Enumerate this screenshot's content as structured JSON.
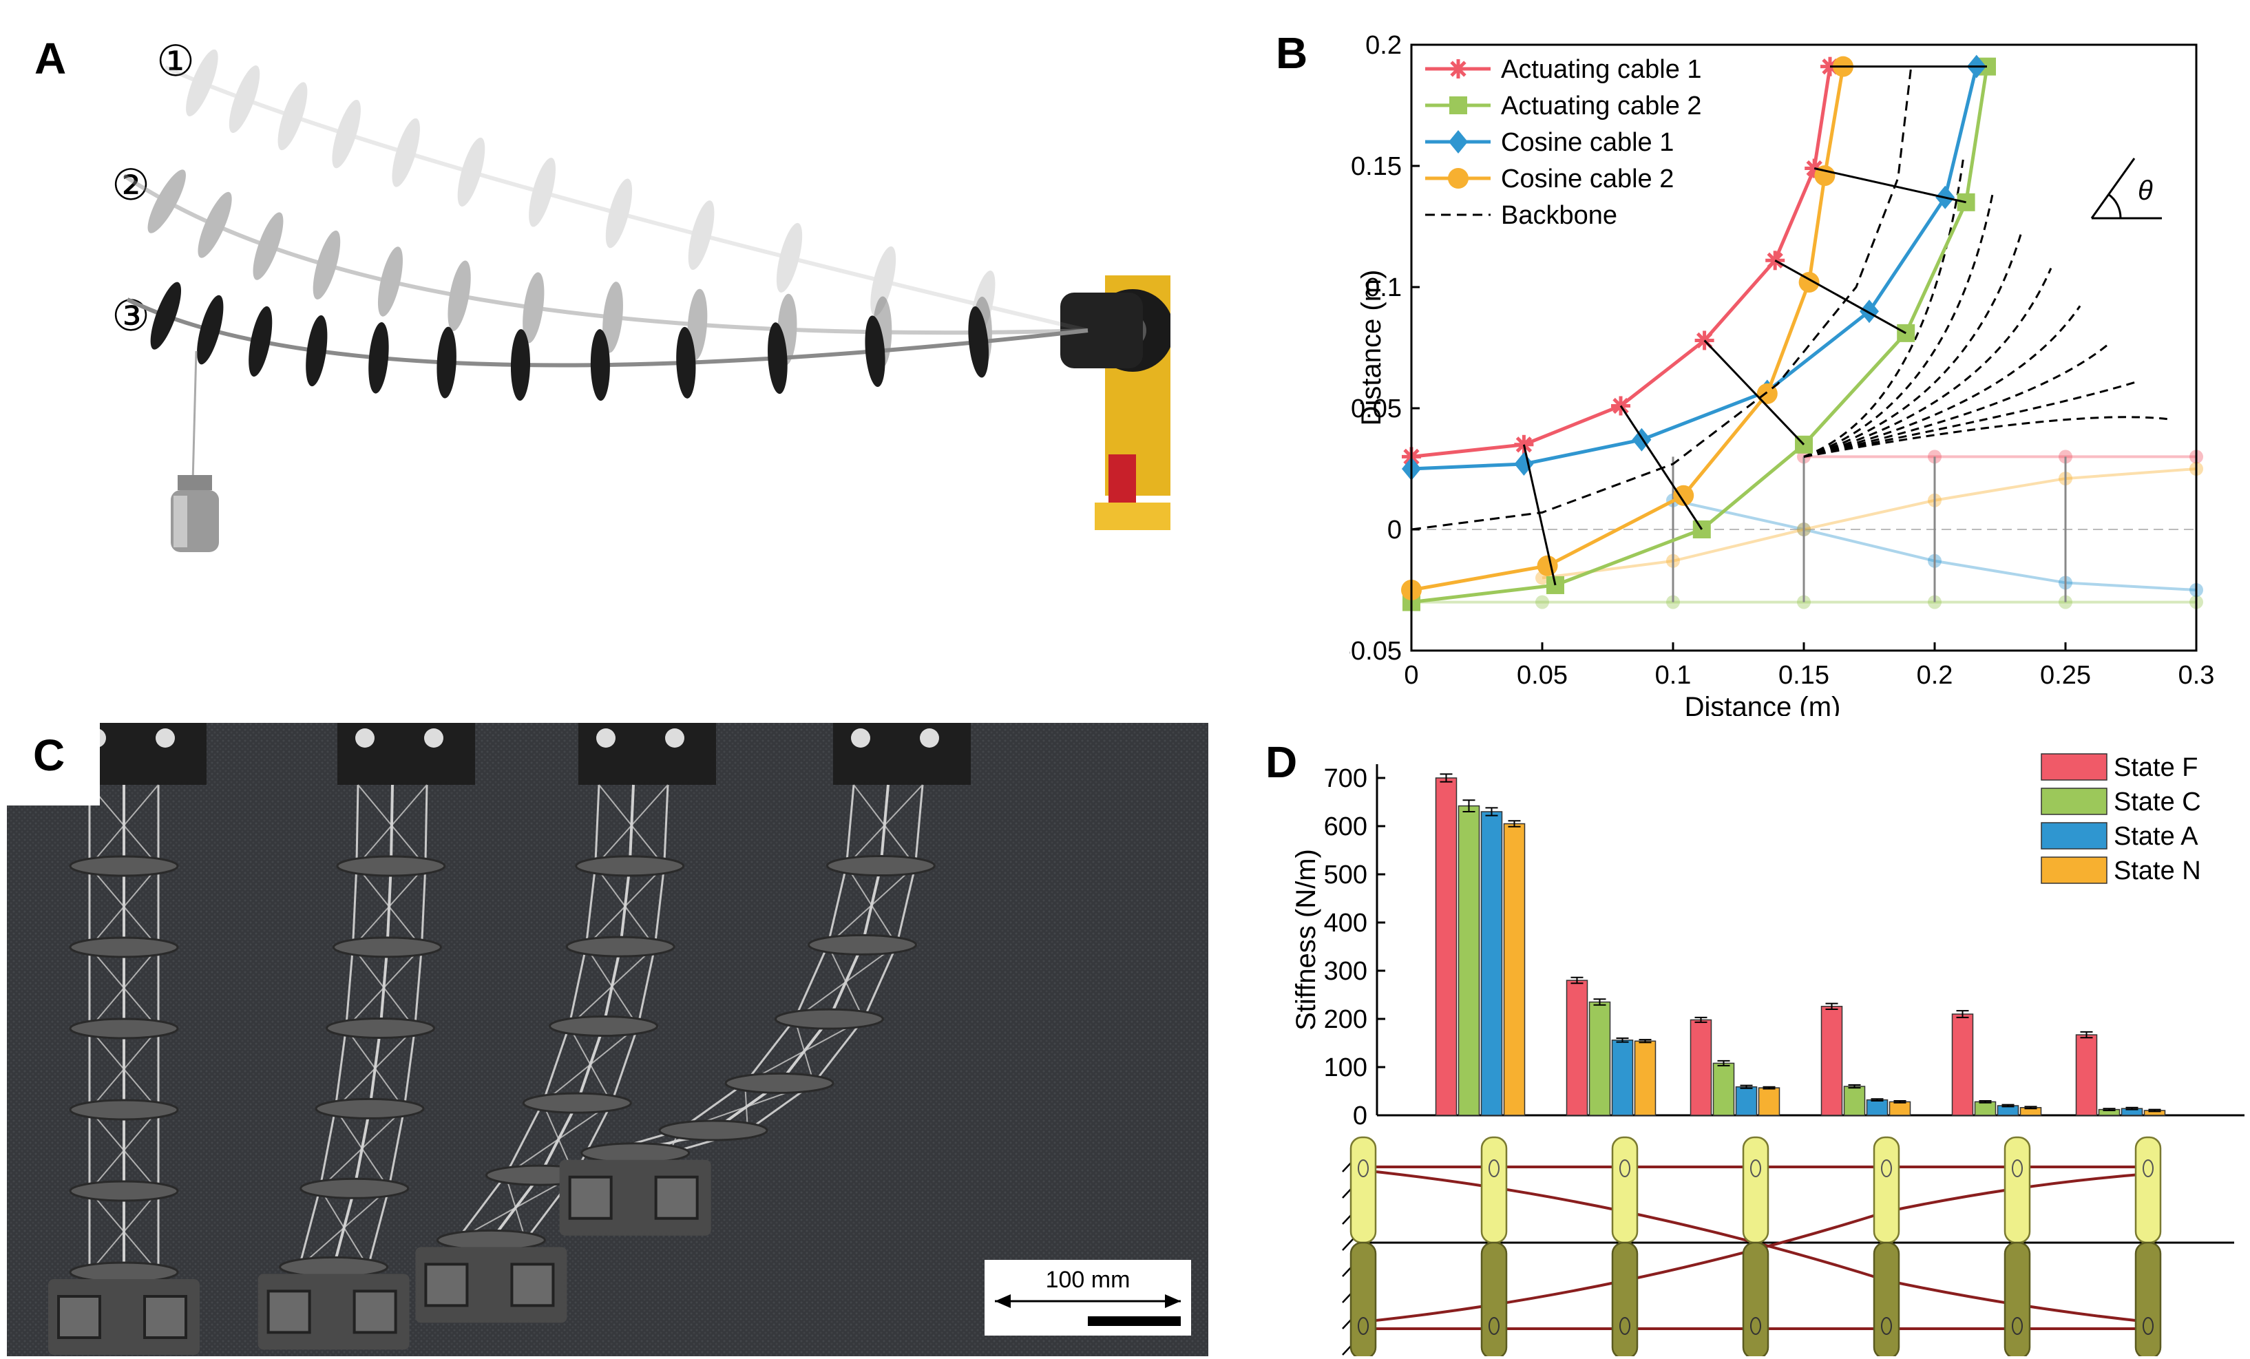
{
  "panels": {
    "a": "A",
    "b": "B",
    "c": "C",
    "d": "D"
  },
  "panel_a": {
    "state_markers": [
      "①",
      "②",
      "③"
    ]
  },
  "panel_c": {
    "scale_bar_label": "100 mm"
  },
  "colors": {
    "red": "#f05a68",
    "green": "#9cc85a",
    "blue": "#2f96d0",
    "orange": "#f7b030",
    "backbone": "#000000",
    "cable_dark": "#8a1e1e",
    "disc_yellow": "#eef08a",
    "disc_olive": "#8f8f3a"
  },
  "chart_data": [
    {
      "type": "line",
      "xlabel": "Distance (m)",
      "ylabel": "Distance (m)",
      "xlim": [
        0,
        0.3
      ],
      "ylim": [
        -0.05,
        0.2
      ],
      "xticks": [
        "0",
        "0.05",
        "0.1",
        "0.15",
        "0.2",
        "0.25",
        "0.3"
      ],
      "yticks": [
        "-0.05",
        "0",
        "0.05",
        "0.1",
        "0.15",
        "0.2"
      ],
      "legend_position": "top-left",
      "series": [
        {
          "name": "Actuating cable 1",
          "color": "#f05a68",
          "marker": "asterisk",
          "x": [
            0,
            0.043,
            0.08,
            0.112,
            0.139,
            0.154,
            0.16
          ],
          "y": [
            0.03,
            0.035,
            0.051,
            0.078,
            0.111,
            0.149,
            0.191
          ]
        },
        {
          "name": "Actuating cable 2",
          "color": "#9cc85a",
          "marker": "square",
          "x": [
            0,
            0.055,
            0.111,
            0.15,
            0.189,
            0.212,
            0.22
          ],
          "y": [
            -0.03,
            -0.023,
            0,
            0.035,
            0.081,
            0.135,
            0.191
          ]
        },
        {
          "name": "Cosine cable 1",
          "color": "#2f96d0",
          "marker": "diamond",
          "x": [
            0,
            0.043,
            0.088,
            0.136,
            0.175,
            0.204,
            0.216
          ],
          "y": [
            0.025,
            0.027,
            0.037,
            0.057,
            0.09,
            0.137,
            0.191
          ]
        },
        {
          "name": "Cosine cable 2",
          "color": "#f7b030",
          "marker": "circle",
          "x": [
            0,
            0.052,
            0.104,
            0.136,
            0.152,
            0.158,
            0.165
          ],
          "y": [
            -0.025,
            -0.015,
            0.014,
            0.056,
            0.102,
            0.146,
            0.191
          ]
        },
        {
          "name": "Backbone",
          "color": "#000000",
          "marker": "none",
          "dashed": true,
          "x": [
            0,
            0.05,
            0.1,
            0.14,
            0.17,
            0.186,
            0.191
          ],
          "y": [
            0,
            0.007,
            0.027,
            0.06,
            0.1,
            0.145,
            0.191
          ]
        }
      ],
      "faded_series": [
        {
          "color": "#f05a68",
          "x": [
            0.15,
            0.2,
            0.25,
            0.3
          ],
          "y": [
            0.03,
            0.03,
            0.03,
            0.03
          ]
        },
        {
          "color": "#9cc85a",
          "x": [
            0,
            0.05,
            0.1,
            0.15,
            0.2,
            0.25,
            0.3
          ],
          "y": [
            -0.03,
            -0.03,
            -0.03,
            -0.03,
            -0.03,
            -0.03,
            -0.03
          ]
        },
        {
          "color": "#2f96d0",
          "x": [
            0.1,
            0.15,
            0.2,
            0.25,
            0.3
          ],
          "y": [
            0.012,
            0,
            -0.013,
            -0.022,
            -0.025
          ]
        },
        {
          "color": "#f7b030",
          "x": [
            0.05,
            0.1,
            0.15,
            0.2,
            0.25,
            0.3
          ],
          "y": [
            -0.02,
            -0.013,
            0,
            0.012,
            0.021,
            0.025
          ]
        }
      ],
      "sweep_backbone_tip_angles_deg": [
        80,
        70,
        60,
        50,
        40,
        30,
        20,
        10
      ],
      "angle_label": "θ"
    },
    {
      "type": "bar",
      "ylabel": "Stiffness (N/m)",
      "ylim": [
        0,
        700
      ],
      "yticks": [
        "0",
        "100",
        "200",
        "300",
        "400",
        "500",
        "600",
        "700"
      ],
      "legend_position": "top-right",
      "series": [
        {
          "name": "State F",
          "color": "#f05a68",
          "values": [
            700,
            280,
            198,
            226,
            210,
            167
          ]
        },
        {
          "name": "State C",
          "color": "#9cc85a",
          "values": [
            642,
            235,
            108,
            60,
            28,
            12
          ]
        },
        {
          "name": "State A",
          "color": "#2f96d0",
          "values": [
            630,
            156,
            59,
            32,
            20,
            14
          ]
        },
        {
          "name": "State N",
          "color": "#f7b030",
          "values": [
            605,
            154,
            57,
            28,
            16,
            10
          ]
        }
      ],
      "error": [
        [
          8,
          6,
          5,
          6,
          7,
          6
        ],
        [
          12,
          6,
          5,
          3,
          2,
          2
        ],
        [
          8,
          4,
          3,
          2,
          2,
          2
        ],
        [
          6,
          3,
          2,
          2,
          2,
          2
        ]
      ]
    }
  ]
}
